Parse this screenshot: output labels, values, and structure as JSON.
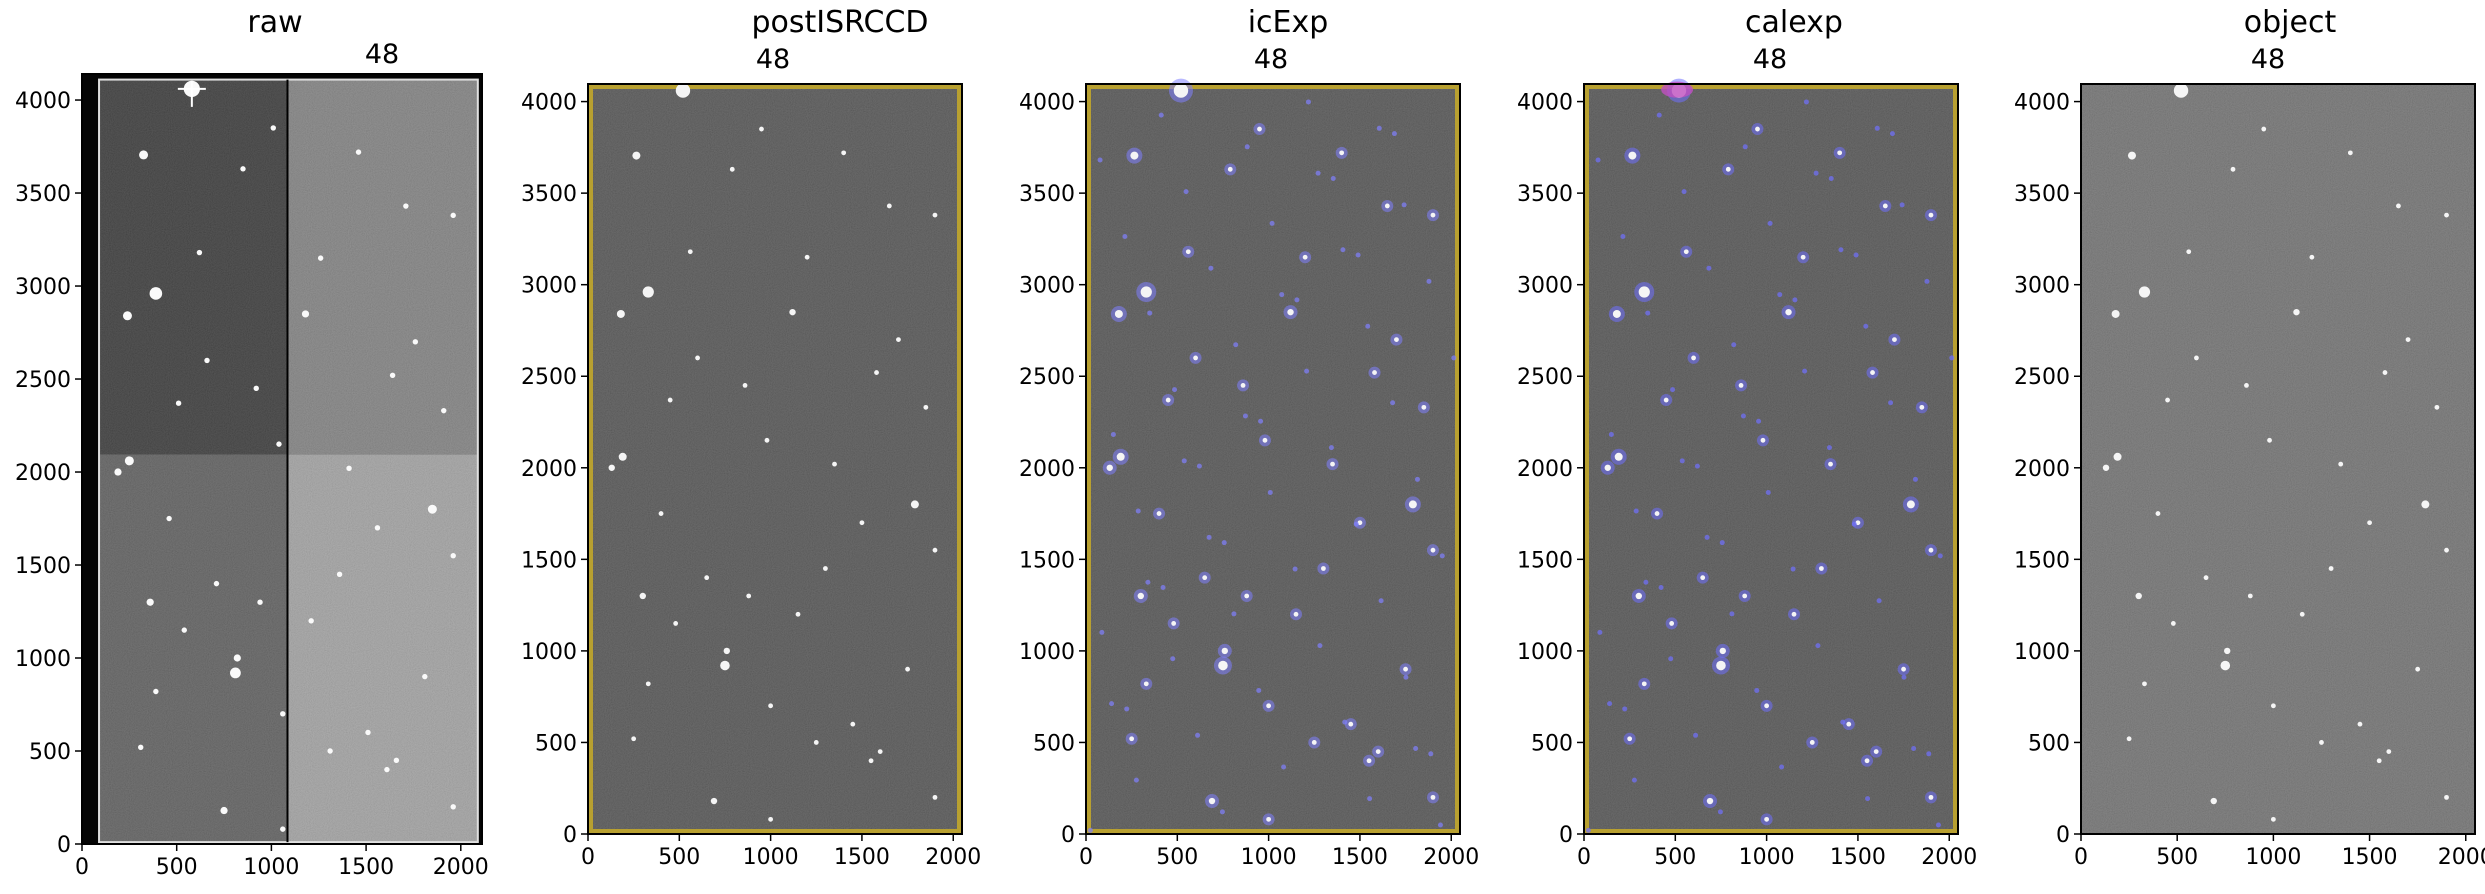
{
  "chart_data": [
    {
      "type": "image",
      "title": "raw",
      "subtitle": "48",
      "xlim": [
        0,
        2112
      ],
      "ylim": [
        0,
        4140
      ],
      "xticks": [
        0,
        500,
        1000,
        1500,
        2000
      ],
      "yticks": [
        0,
        500,
        1000,
        1500,
        2000,
        2500,
        3000,
        3500,
        4000
      ],
      "quadrant_gray": [
        "#2e2e2e",
        "#7a7a7a",
        "#555555",
        "#9d9d9d"
      ]
    },
    {
      "type": "image",
      "title": "postISRCCD",
      "subtitle": "48",
      "xlim": [
        0,
        2048
      ],
      "ylim": [
        0,
        4096
      ],
      "xticks": [
        0,
        500,
        1000,
        1500,
        2000
      ],
      "yticks": [
        0,
        500,
        1000,
        1500,
        2000,
        2500,
        3000,
        3500,
        4000
      ],
      "background": "#4a4a4a",
      "border_color": "#b8a030"
    },
    {
      "type": "image",
      "title": "icExp",
      "subtitle": "48",
      "xlim": [
        0,
        2048
      ],
      "ylim": [
        0,
        4096
      ],
      "xticks": [
        0,
        500,
        1000,
        1500,
        2000
      ],
      "yticks": [
        0,
        500,
        1000,
        1500,
        2000,
        2500,
        3000,
        3500,
        4000
      ],
      "background": "#4a4a4a",
      "border_color": "#b8a030",
      "mask_color": "#8080ff"
    },
    {
      "type": "image",
      "title": "calexp",
      "subtitle": "48",
      "xlim": [
        0,
        2048
      ],
      "ylim": [
        0,
        4096
      ],
      "xticks": [
        0,
        500,
        1000,
        1500,
        2000
      ],
      "yticks": [
        0,
        500,
        1000,
        1500,
        2000,
        2500,
        3000,
        3500,
        4000
      ],
      "background": "#4a4a4a",
      "border_color": "#b8a030",
      "mask_color": "#7070ff",
      "saturated_color": "#c050c0"
    },
    {
      "type": "image",
      "title": "object",
      "subtitle": "48",
      "xlim": [
        0,
        2048
      ],
      "ylim": [
        0,
        4096
      ],
      "xticks": [
        0,
        500,
        1000,
        1500,
        2000
      ],
      "yticks": [
        0,
        500,
        1000,
        1500,
        2000,
        2500,
        3000,
        3500,
        4000
      ],
      "background": "#6a6a6a"
    }
  ],
  "stars": [
    [
      520,
      4060,
      9
    ],
    [
      265,
      3705,
      5
    ],
    [
      330,
      2960,
      7
    ],
    [
      180,
      2840,
      5
    ],
    [
      1120,
      2850,
      4
    ],
    [
      790,
      3630,
      3
    ],
    [
      450,
      2370,
      3
    ],
    [
      1580,
      2520,
      3
    ],
    [
      1850,
      2330,
      3
    ],
    [
      1650,
      3430,
      3
    ],
    [
      190,
      2060,
      5
    ],
    [
      130,
      2000,
      4
    ],
    [
      1790,
      1800,
      5
    ],
    [
      300,
      1300,
      4
    ],
    [
      650,
      1400,
      3
    ],
    [
      1300,
      1450,
      3
    ],
    [
      1900,
      1550,
      3
    ],
    [
      760,
      1000,
      4
    ],
    [
      750,
      920,
      6
    ],
    [
      330,
      820,
      3
    ],
    [
      1000,
      700,
      3
    ],
    [
      1450,
      600,
      3
    ],
    [
      1250,
      500,
      3
    ],
    [
      1600,
      450,
      3
    ],
    [
      690,
      180,
      4
    ],
    [
      1000,
      80,
      3
    ],
    [
      1550,
      400,
      3
    ],
    [
      1900,
      200,
      3
    ],
    [
      880,
      1300,
      3
    ],
    [
      1150,
      1200,
      3
    ],
    [
      400,
      1750,
      3
    ],
    [
      980,
      2150,
      3
    ],
    [
      1350,
      2020,
      3
    ],
    [
      1700,
      2700,
      3
    ],
    [
      560,
      3180,
      3
    ],
    [
      1900,
      3380,
      3
    ],
    [
      1400,
      3720,
      3
    ],
    [
      950,
      3850,
      3
    ],
    [
      600,
      2600,
      3
    ],
    [
      250,
      520,
      3
    ],
    [
      1750,
      900,
      3
    ],
    [
      1200,
      3150,
      3
    ],
    [
      480,
      1150,
      3
    ],
    [
      1500,
      1700,
      3
    ],
    [
      860,
      2450,
      3
    ]
  ]
}
